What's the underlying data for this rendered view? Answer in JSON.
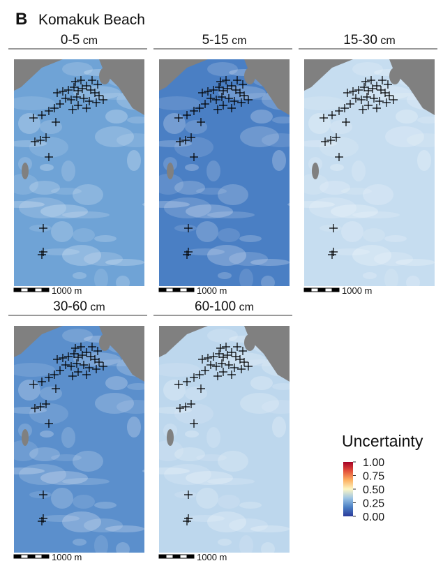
{
  "figure": {
    "label": "B",
    "title": "Komakuk Beach"
  },
  "panels": [
    {
      "depth": "0-5",
      "unit": "cm",
      "scale_label": "1000 m",
      "color": "#6fa3d6"
    },
    {
      "depth": "5-15",
      "unit": "cm",
      "scale_label": "1000 m",
      "color": "#4a7fc4"
    },
    {
      "depth": "15-30",
      "unit": "cm",
      "scale_label": "1000 m",
      "color": "#c6ddf0"
    },
    {
      "depth": "30-60",
      "unit": "cm",
      "scale_label": "1000 m",
      "color": "#5b8fcc"
    },
    {
      "depth": "60-100",
      "unit": "cm",
      "scale_label": "1000 m",
      "color": "#bdd7ed"
    }
  ],
  "legend": {
    "title": "Uncertainty",
    "ticks": [
      {
        "value": 1,
        "label": "1.00"
      },
      {
        "value": 0.75,
        "label": "0.75"
      },
      {
        "value": 0.5,
        "label": "0.50"
      },
      {
        "value": 0.25,
        "label": "0.25"
      },
      {
        "value": 0,
        "label": "0.00"
      }
    ],
    "colors": [
      "#2b3a9a",
      "#4a7fc4",
      "#9cc4e4",
      "#fdf6c4",
      "#fdb061",
      "#e3503b",
      "#a50026"
    ]
  }
}
